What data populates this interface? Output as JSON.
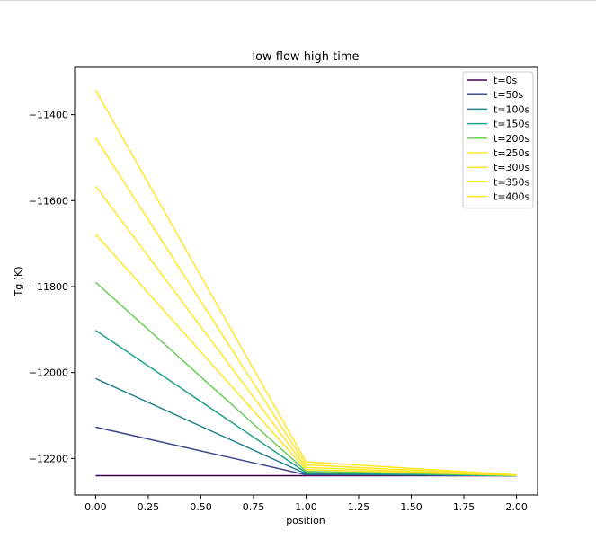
{
  "chart_data": {
    "type": "line",
    "title": "low flow high time",
    "xlabel": "position",
    "ylabel": "Tg (K)",
    "x": [
      0,
      1,
      2
    ],
    "xlim": [
      -0.1,
      2.1
    ],
    "ylim": [
      -12285,
      -11290
    ],
    "xticks": [
      "0.00",
      "0.25",
      "0.50",
      "0.75",
      "1.00",
      "1.25",
      "1.50",
      "1.75",
      "2.00"
    ],
    "xtick_values": [
      0,
      0.25,
      0.5,
      0.75,
      1.0,
      1.25,
      1.5,
      1.75,
      2.0
    ],
    "yticks": [
      "−11400",
      "−11600",
      "−11800",
      "−12000",
      "−12200"
    ],
    "ytick_values": [
      -11400,
      -11600,
      -11800,
      -12000,
      -12200
    ],
    "legend_position": "top-right",
    "grid": false,
    "series": [
      {
        "name": "t=0s",
        "color": "#440154",
        "values": [
          -12240,
          -12240,
          -12240
        ]
      },
      {
        "name": "t=50s",
        "color": "#3e4a89",
        "values": [
          -12127,
          -12238,
          -12240
        ]
      },
      {
        "name": "t=100s",
        "color": "#26828e",
        "values": [
          -12014,
          -12236,
          -12240
        ]
      },
      {
        "name": "t=150s",
        "color": "#1fa088",
        "values": [
          -11902,
          -12233,
          -12240
        ]
      },
      {
        "name": "t=200s",
        "color": "#6ccd5a",
        "values": [
          -11790,
          -12230,
          -12240
        ]
      },
      {
        "name": "t=250s",
        "color": "#fde725",
        "values": [
          -11678,
          -12226,
          -12239
        ]
      },
      {
        "name": "t=300s",
        "color": "#fde725",
        "values": [
          -11566,
          -12221,
          -12239
        ]
      },
      {
        "name": "t=350s",
        "color": "#fde725",
        "values": [
          -11454,
          -12215,
          -12239
        ]
      },
      {
        "name": "t=400s",
        "color": "#fde725",
        "values": [
          -11343,
          -12208,
          -12238
        ]
      }
    ]
  }
}
